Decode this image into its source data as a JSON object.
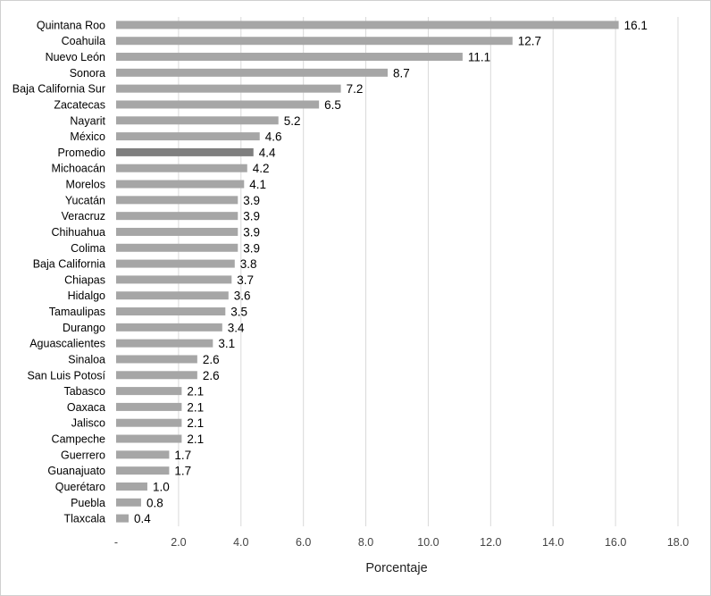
{
  "chart_data": {
    "type": "bar",
    "orientation": "horizontal",
    "xlabel": "Porcentaje",
    "xlim": [
      0,
      18
    ],
    "x_ticks": [
      "-",
      "2.0",
      "4.0",
      "6.0",
      "8.0",
      "10.0",
      "12.0",
      "14.0",
      "16.0",
      "18.0"
    ],
    "grid": true,
    "bar_color": "#a6a6a6",
    "highlight_color": "#7f7f7f",
    "highlight_category": "Promedio",
    "categories": [
      "Quintana Roo",
      "Coahuila",
      "Nuevo León",
      "Sonora",
      "Baja California Sur",
      "Zacatecas",
      "Nayarit",
      "México",
      "Promedio",
      "Michoacán",
      "Morelos",
      "Yucatán",
      "Veracruz",
      "Chihuahua",
      "Colima",
      "Baja California",
      "Chiapas",
      "Hidalgo",
      "Tamaulipas",
      "Durango",
      "Aguascalientes",
      "Sinaloa",
      "San Luis Potosí",
      "Tabasco",
      "Oaxaca",
      "Jalisco",
      "Campeche",
      "Guerrero",
      "Guanajuato",
      "Querétaro",
      "Puebla",
      "Tlaxcala"
    ],
    "values": [
      16.1,
      12.7,
      11.1,
      8.7,
      7.2,
      6.5,
      5.2,
      4.6,
      4.4,
      4.2,
      4.1,
      3.9,
      3.9,
      3.9,
      3.9,
      3.8,
      3.7,
      3.6,
      3.5,
      3.4,
      3.1,
      2.6,
      2.6,
      2.1,
      2.1,
      2.1,
      2.1,
      1.7,
      1.7,
      1.0,
      0.8,
      0.4
    ],
    "value_labels": [
      "16.1",
      "12.7",
      "11.1",
      "8.7",
      "7.2",
      "6.5",
      "5.2",
      "4.6",
      "4.4",
      "4.2",
      "4.1",
      "3.9",
      "3.9",
      "3.9",
      "3.9",
      "3.8",
      "3.7",
      "3.6",
      "3.5",
      "3.4",
      "3.1",
      "2.6",
      "2.6",
      "2.1",
      "2.1",
      "2.1",
      "2.1",
      "1.7",
      "1.7",
      "1.0",
      "0.8",
      "0.4"
    ]
  }
}
